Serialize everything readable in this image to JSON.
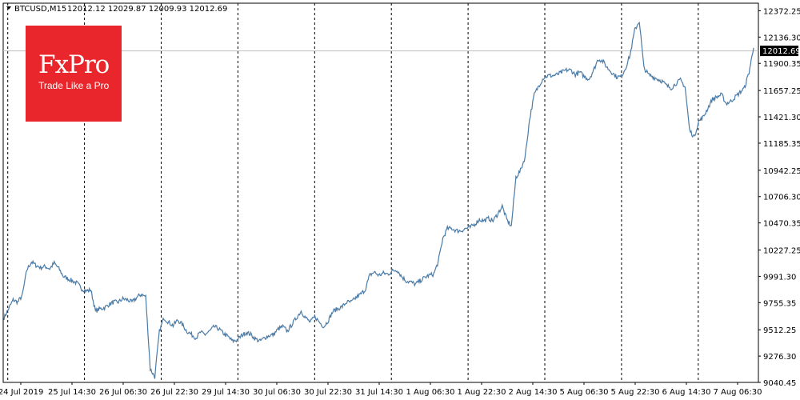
{
  "header": {
    "symbol": "BTCUSD,M15",
    "ohlc": "12012.12 12029.87 12009.93 12012.69"
  },
  "logo": {
    "name": "FxPro",
    "tagline": "Trade Like a Pro"
  },
  "colors": {
    "line": "#4a7ba7",
    "grid": "#000000",
    "axis": "#000000",
    "price_line": "#c0c0c0"
  },
  "chart_data": {
    "type": "line",
    "ylim": [
      9040.45,
      12440
    ],
    "y_ticks": [
      "12372.25",
      "12136.30",
      "11900.35",
      "11657.25",
      "11421.30",
      "11185.35",
      "10942.25",
      "10706.30",
      "10470.35",
      "10227.25",
      "9991.30",
      "9755.35",
      "9512.25",
      "9276.30",
      "9040.45"
    ],
    "x_labels": [
      "24 Jul 2019",
      "25 Jul 14:30",
      "26 Jul 06:30",
      "26 Jul 22:30",
      "29 Jul 14:30",
      "30 Jul 06:30",
      "30 Jul 22:30",
      "31 Jul 14:30",
      "1 Aug 06:30",
      "1 Aug 22:30",
      "2 Aug 14:30",
      "5 Aug 06:30",
      "5 Aug 22:30",
      "6 Aug 14:30",
      "7 Aug 06:30"
    ],
    "separators": [
      "25 Jul",
      "26 Jul",
      "29 Jul",
      "30 Jul",
      "31 Jul",
      "1 Aug",
      "2 Aug",
      "5 Aug",
      "6 Aug",
      "7 Aug"
    ],
    "current_price": "12012.69",
    "series": [
      {
        "values": [
          9620,
          9700,
          9780,
          9760,
          9820,
          10050,
          10120,
          10090,
          10070,
          10080,
          10060,
          10110,
          10060,
          9990,
          9970,
          9950,
          9930,
          9880,
          9860,
          9870,
          9680,
          9700,
          9710,
          9740,
          9760,
          9760,
          9790,
          9780,
          9760,
          9800,
          9830,
          9810,
          9160,
          9090,
          9500,
          9620,
          9580,
          9550,
          9600,
          9560,
          9500,
          9470,
          9440,
          9490,
          9470,
          9500,
          9540,
          9520,
          9480,
          9450,
          9410,
          9420,
          9460,
          9490,
          9470,
          9430,
          9410,
          9440,
          9460,
          9470,
          9520,
          9540,
          9500,
          9560,
          9620,
          9680,
          9620,
          9580,
          9630,
          9580,
          9540,
          9600,
          9680,
          9700,
          9720,
          9760,
          9760,
          9800,
          9830,
          9870,
          10000,
          10030,
          10000,
          10020,
          10010,
          10040,
          10050,
          9990,
          9950,
          9940,
          9920,
          9950,
          9980,
          10000,
          10010,
          10120,
          10330,
          10420,
          10420,
          10400,
          10400,
          10420,
          10430,
          10460,
          10500,
          10490,
          10510,
          10490,
          10550,
          10620,
          10500,
          10440,
          10880,
          10940,
          11060,
          11400,
          11620,
          11700,
          11770,
          11790,
          11790,
          11800,
          11820,
          11840,
          11840,
          11800,
          11820,
          11780,
          11760,
          11840,
          11940,
          11920,
          11860,
          11820,
          11780,
          11780,
          11860,
          11980,
          12200,
          12280,
          11860,
          11800,
          11780,
          11760,
          11740,
          11700,
          11680,
          11720,
          11750,
          11690,
          11300,
          11240,
          11380,
          11420,
          11500,
          11580,
          11600,
          11620,
          11540,
          11560,
          11600,
          11640,
          11680,
          11820,
          12040
        ]
      }
    ]
  }
}
